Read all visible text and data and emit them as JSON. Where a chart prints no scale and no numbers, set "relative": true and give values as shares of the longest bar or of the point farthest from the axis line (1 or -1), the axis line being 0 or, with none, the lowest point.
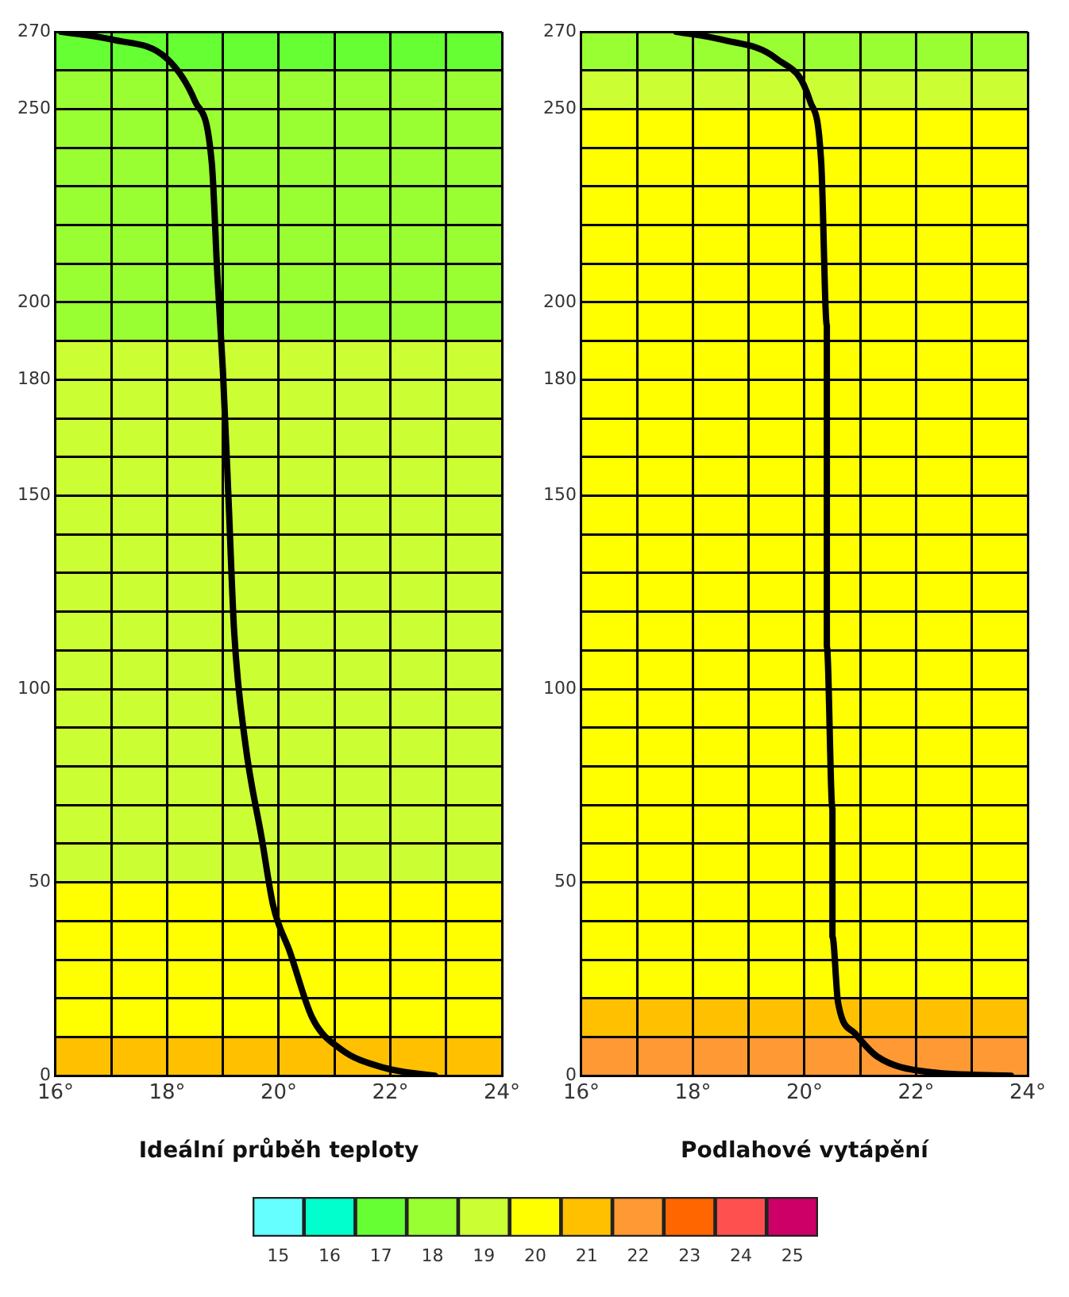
{
  "chart_data": [
    {
      "type": "line",
      "xlabel": "Ideální průběh teploty",
      "xlim": [
        16,
        24
      ],
      "ylim": [
        0,
        270
      ],
      "grid": true,
      "xticks": [
        {
          "value": 16,
          "label": "16°"
        },
        {
          "value": 17,
          "label": null
        },
        {
          "value": 18,
          "label": "18°"
        },
        {
          "value": 19,
          "label": null
        },
        {
          "value": 20,
          "label": "20°"
        },
        {
          "value": 21,
          "label": null
        },
        {
          "value": 22,
          "label": "22°"
        },
        {
          "value": 23,
          "label": null
        },
        {
          "value": 24,
          "label": "24°"
        }
      ],
      "yticks": [
        0,
        {
          "value": 10,
          "label": null
        },
        {
          "value": 20,
          "label": null
        },
        {
          "value": 30,
          "label": null
        },
        {
          "value": 40,
          "label": null
        },
        50,
        {
          "value": 60,
          "label": null
        },
        {
          "value": 70,
          "label": null
        },
        {
          "value": 80,
          "label": null
        },
        {
          "value": 90,
          "label": null
        },
        100,
        {
          "value": 110,
          "label": null
        },
        {
          "value": 120,
          "label": null
        },
        {
          "value": 130,
          "label": null
        },
        {
          "value": 140,
          "label": null
        },
        150,
        {
          "value": 160,
          "label": null
        },
        {
          "value": 170,
          "label": null
        },
        180,
        {
          "value": 190,
          "label": null
        },
        200,
        {
          "value": 210,
          "label": null
        },
        {
          "value": 220,
          "label": null
        },
        {
          "value": 230,
          "label": null
        },
        {
          "value": 240,
          "label": null
        },
        250,
        {
          "value": 260,
          "label": null
        },
        270
      ],
      "bands": [
        {
          "axis": "y",
          "from": 0,
          "to": 10,
          "color": "#ffc000"
        },
        {
          "axis": "y",
          "from": 10,
          "to": 50,
          "color": "#ffff00"
        },
        {
          "axis": "y",
          "from": 50,
          "to": 190,
          "color": "#ccff33"
        },
        {
          "axis": "y",
          "from": 190,
          "to": 260,
          "color": "#99ff33"
        },
        {
          "axis": "y",
          "from": 260,
          "to": 270,
          "color": "#66ff33"
        }
      ],
      "series": [
        {
          "color": "#000000",
          "x": [
            16.1,
            17.0,
            18.0,
            18.5,
            18.8,
            18.9,
            19.0,
            19.1,
            19.2,
            19.4,
            19.7,
            19.9,
            20.2,
            20.6,
            21.1,
            21.9,
            22.8
          ],
          "values": [
            270,
            268,
            263,
            252,
            236,
            207,
            182,
            149,
            115,
            86,
            61,
            44,
            32,
            15,
            7,
            2,
            0
          ]
        }
      ]
    },
    {
      "type": "line",
      "xlabel": "Podlahové vytápění",
      "xlim": [
        16,
        24
      ],
      "ylim": [
        0,
        270
      ],
      "grid": true,
      "xticks": [
        {
          "value": 16,
          "label": "16°"
        },
        {
          "value": 17,
          "label": null
        },
        {
          "value": 18,
          "label": "18°"
        },
        {
          "value": 19,
          "label": null
        },
        {
          "value": 20,
          "label": "20°"
        },
        {
          "value": 21,
          "label": null
        },
        {
          "value": 22,
          "label": "22°"
        },
        {
          "value": 23,
          "label": null
        },
        {
          "value": 24,
          "label": "24°"
        }
      ],
      "yticks": [
        0,
        {
          "value": 10,
          "label": null
        },
        {
          "value": 20,
          "label": null
        },
        {
          "value": 30,
          "label": null
        },
        {
          "value": 40,
          "label": null
        },
        50,
        {
          "value": 60,
          "label": null
        },
        {
          "value": 70,
          "label": null
        },
        {
          "value": 80,
          "label": null
        },
        {
          "value": 90,
          "label": null
        },
        100,
        {
          "value": 110,
          "label": null
        },
        {
          "value": 120,
          "label": null
        },
        {
          "value": 130,
          "label": null
        },
        {
          "value": 140,
          "label": null
        },
        150,
        {
          "value": 160,
          "label": null
        },
        {
          "value": 170,
          "label": null
        },
        180,
        {
          "value": 190,
          "label": null
        },
        200,
        {
          "value": 210,
          "label": null
        },
        {
          "value": 220,
          "label": null
        },
        {
          "value": 230,
          "label": null
        },
        {
          "value": 240,
          "label": null
        },
        250,
        {
          "value": 260,
          "label": null
        },
        270
      ],
      "bands": [
        {
          "axis": "y",
          "from": 0,
          "to": 10,
          "color": "#ff9933"
        },
        {
          "axis": "y",
          "from": 10,
          "to": 20,
          "color": "#ffc000"
        },
        {
          "axis": "y",
          "from": 20,
          "to": 250,
          "color": "#ffff00"
        },
        {
          "axis": "y",
          "from": 250,
          "to": 260,
          "color": "#ccff33"
        },
        {
          "axis": "y",
          "from": 260,
          "to": 270,
          "color": "#99ff33"
        }
      ],
      "series": [
        {
          "color": "#000000",
          "x": [
            17.7,
            18.5,
            19.5,
            20.1,
            20.3,
            20.4,
            20.4,
            20.5,
            20.5,
            20.6,
            20.9,
            21.3,
            22.2,
            23.7
          ],
          "values": [
            270,
            268,
            263,
            252,
            236,
            194,
            111,
            69,
            36,
            19,
            11,
            5,
            1,
            0
          ]
        }
      ]
    },
    {
      "type": "bar",
      "relative": true,
      "categories": [
        "15",
        "16",
        "17",
        "18",
        "19",
        "20",
        "21",
        "22",
        "23",
        "24",
        "25"
      ],
      "values": [
        1,
        1,
        1,
        1,
        1,
        1,
        1,
        1,
        1,
        1,
        1
      ],
      "colors": [
        "#66ffff",
        "#00ffcc",
        "#66ff33",
        "#99ff33",
        "#ccff33",
        "#ffff00",
        "#ffc000",
        "#ff9933",
        "#ff6600",
        "#ff5050",
        "#cc0066"
      ]
    }
  ]
}
